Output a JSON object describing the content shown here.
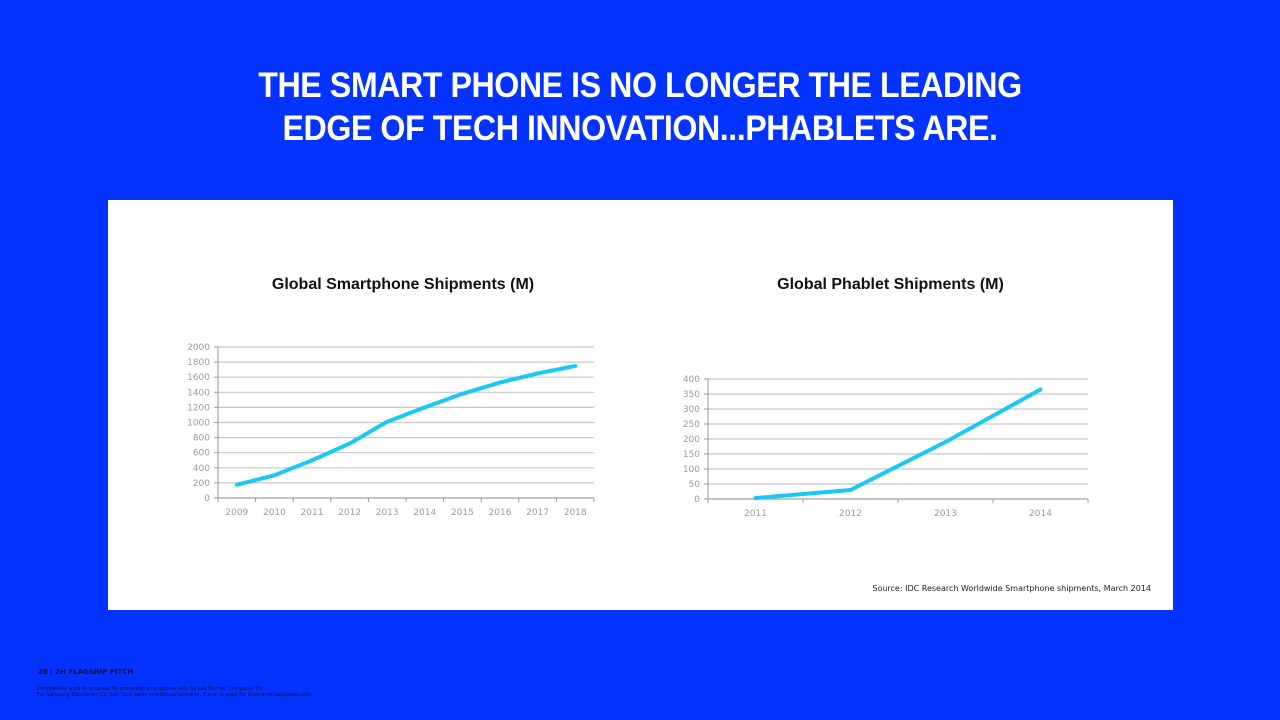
{
  "headline": {
    "line1": "THE SMART PHONE IS NO LONGER THE LEADING",
    "line2": "EDGE OF TECH INNOVATION...PHABLETS ARE."
  },
  "colors": {
    "background": "#0433ff",
    "line": "#1ac8f5",
    "grid": "#c8c8c8"
  },
  "chart_data": [
    {
      "type": "line",
      "title": "Global Smartphone Shipments (M)",
      "xlabel": "",
      "ylabel": "",
      "categories": [
        "2009",
        "2010",
        "2011",
        "2012",
        "2013",
        "2014",
        "2015",
        "2016",
        "2017",
        "2018"
      ],
      "series": [
        {
          "name": "Smartphone shipments",
          "values": [
            175,
            300,
            500,
            720,
            1010,
            1200,
            1380,
            1530,
            1650,
            1750
          ]
        }
      ],
      "ylim": [
        0,
        2000
      ],
      "yticks": [
        0,
        200,
        400,
        600,
        800,
        1000,
        1200,
        1400,
        1600,
        1800,
        2000
      ],
      "grid": true,
      "legend": "none"
    },
    {
      "type": "line",
      "title": "Global Phablet Shipments (M)",
      "xlabel": "",
      "ylabel": "",
      "categories": [
        "2011",
        "2012",
        "2013",
        "2014"
      ],
      "series": [
        {
          "name": "Phablet shipments",
          "values": [
            3,
            30,
            190,
            365
          ]
        }
      ],
      "ylim": [
        0,
        400
      ],
      "yticks": [
        0,
        50,
        100,
        150,
        200,
        250,
        300,
        350,
        400
      ],
      "grid": true,
      "legend": "none"
    }
  ],
  "source": "Source: IDC Research Worldwide Smartphone shipments, March 2014",
  "footer": {
    "page": "28  |  2H FLAGSHIP PITCH",
    "legal1": "Confidential work in progress for presentation purposes only by Leo Burnett Company, Inc.",
    "legal2": "For Samsung Electronics Co. Ltd. third party intellectual property, if any, is used for illustration purposes only."
  }
}
